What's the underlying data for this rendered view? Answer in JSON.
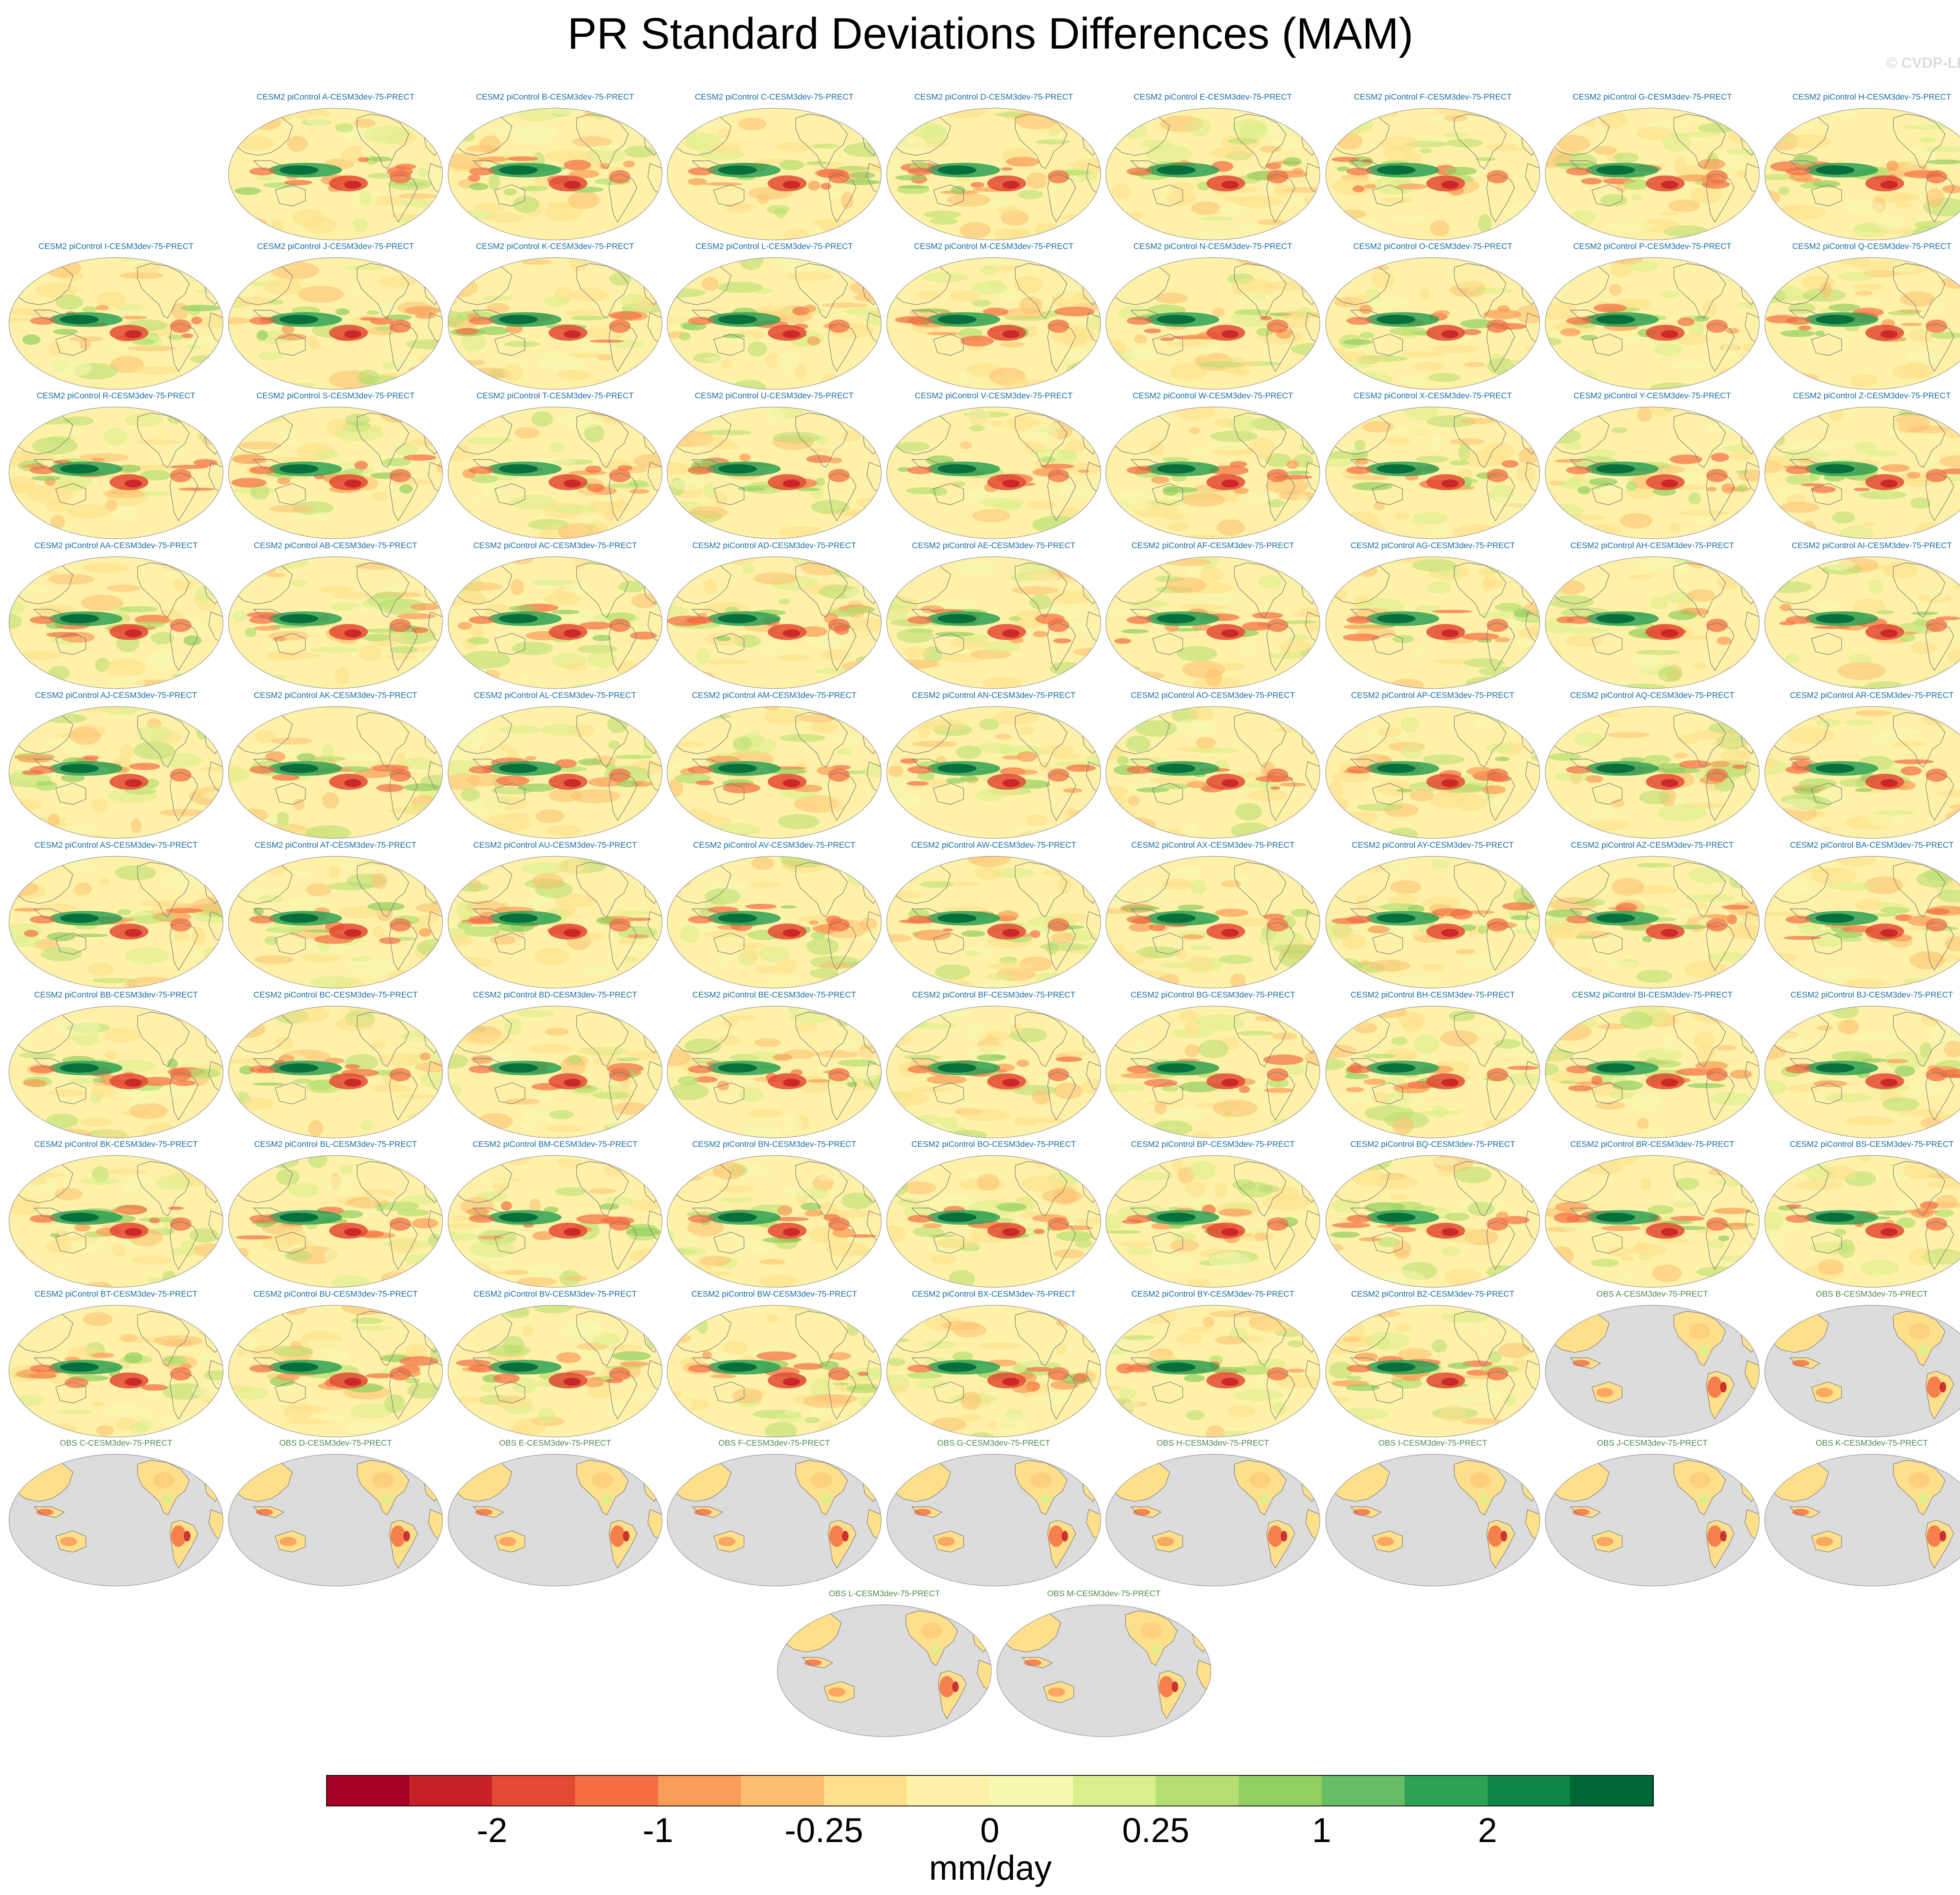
{
  "figure": {
    "title": "PR Standard Deviations Differences (MAM)",
    "watermark": "© CVDP-LE"
  },
  "colors": {
    "model_label": "#1a6ea0",
    "obs_label": "#4f8a4f",
    "ocean_obs": "#dcdcdc",
    "coast": "#7a7a7a",
    "background": "#ffffff"
  },
  "panels": [
    {
      "label": "CESM2 piControl A-CESM3dev-75-PRECT",
      "kind": "model"
    },
    {
      "label": "CESM2 piControl B-CESM3dev-75-PRECT",
      "kind": "model"
    },
    {
      "label": "CESM2 piControl C-CESM3dev-75-PRECT",
      "kind": "model"
    },
    {
      "label": "CESM2 piControl D-CESM3dev-75-PRECT",
      "kind": "model"
    },
    {
      "label": "CESM2 piControl E-CESM3dev-75-PRECT",
      "kind": "model"
    },
    {
      "label": "CESM2 piControl F-CESM3dev-75-PRECT",
      "kind": "model"
    },
    {
      "label": "CESM2 piControl G-CESM3dev-75-PRECT",
      "kind": "model"
    },
    {
      "label": "CESM2 piControl H-CESM3dev-75-PRECT",
      "kind": "model"
    },
    {
      "label": "CESM2 piControl I-CESM3dev-75-PRECT",
      "kind": "model"
    },
    {
      "label": "CESM2 piControl J-CESM3dev-75-PRECT",
      "kind": "model"
    },
    {
      "label": "CESM2 piControl K-CESM3dev-75-PRECT",
      "kind": "model"
    },
    {
      "label": "CESM2 piControl L-CESM3dev-75-PRECT",
      "kind": "model"
    },
    {
      "label": "CESM2 piControl M-CESM3dev-75-PRECT",
      "kind": "model"
    },
    {
      "label": "CESM2 piControl N-CESM3dev-75-PRECT",
      "kind": "model"
    },
    {
      "label": "CESM2 piControl O-CESM3dev-75-PRECT",
      "kind": "model"
    },
    {
      "label": "CESM2 piControl P-CESM3dev-75-PRECT",
      "kind": "model"
    },
    {
      "label": "CESM2 piControl Q-CESM3dev-75-PRECT",
      "kind": "model"
    },
    {
      "label": "CESM2 piControl R-CESM3dev-75-PRECT",
      "kind": "model"
    },
    {
      "label": "CESM2 piControl S-CESM3dev-75-PRECT",
      "kind": "model"
    },
    {
      "label": "CESM2 piControl T-CESM3dev-75-PRECT",
      "kind": "model"
    },
    {
      "label": "CESM2 piControl U-CESM3dev-75-PRECT",
      "kind": "model"
    },
    {
      "label": "CESM2 piControl V-CESM3dev-75-PRECT",
      "kind": "model"
    },
    {
      "label": "CESM2 piControl W-CESM3dev-75-PRECT",
      "kind": "model"
    },
    {
      "label": "CESM2 piControl X-CESM3dev-75-PRECT",
      "kind": "model"
    },
    {
      "label": "CESM2 piControl Y-CESM3dev-75-PRECT",
      "kind": "model"
    },
    {
      "label": "CESM2 piControl Z-CESM3dev-75-PRECT",
      "kind": "model"
    },
    {
      "label": "CESM2 piControl AA-CESM3dev-75-PRECT",
      "kind": "model"
    },
    {
      "label": "CESM2 piControl AB-CESM3dev-75-PRECT",
      "kind": "model"
    },
    {
      "label": "CESM2 piControl AC-CESM3dev-75-PRECT",
      "kind": "model"
    },
    {
      "label": "CESM2 piControl AD-CESM3dev-75-PRECT",
      "kind": "model"
    },
    {
      "label": "CESM2 piControl AE-CESM3dev-75-PRECT",
      "kind": "model"
    },
    {
      "label": "CESM2 piControl AF-CESM3dev-75-PRECT",
      "kind": "model"
    },
    {
      "label": "CESM2 piControl AG-CESM3dev-75-PRECT",
      "kind": "model"
    },
    {
      "label": "CESM2 piControl AH-CESM3dev-75-PRECT",
      "kind": "model"
    },
    {
      "label": "CESM2 piControl AI-CESM3dev-75-PRECT",
      "kind": "model"
    },
    {
      "label": "CESM2 piControl AJ-CESM3dev-75-PRECT",
      "kind": "model"
    },
    {
      "label": "CESM2 piControl AK-CESM3dev-75-PRECT",
      "kind": "model"
    },
    {
      "label": "CESM2 piControl AL-CESM3dev-75-PRECT",
      "kind": "model"
    },
    {
      "label": "CESM2 piControl AM-CESM3dev-75-PRECT",
      "kind": "model"
    },
    {
      "label": "CESM2 piControl AN-CESM3dev-75-PRECT",
      "kind": "model"
    },
    {
      "label": "CESM2 piControl AO-CESM3dev-75-PRECT",
      "kind": "model"
    },
    {
      "label": "CESM2 piControl AP-CESM3dev-75-PRECT",
      "kind": "model"
    },
    {
      "label": "CESM2 piControl AQ-CESM3dev-75-PRECT",
      "kind": "model"
    },
    {
      "label": "CESM2 piControl AR-CESM3dev-75-PRECT",
      "kind": "model"
    },
    {
      "label": "CESM2 piControl AS-CESM3dev-75-PRECT",
      "kind": "model"
    },
    {
      "label": "CESM2 piControl AT-CESM3dev-75-PRECT",
      "kind": "model"
    },
    {
      "label": "CESM2 piControl AU-CESM3dev-75-PRECT",
      "kind": "model"
    },
    {
      "label": "CESM2 piControl AV-CESM3dev-75-PRECT",
      "kind": "model"
    },
    {
      "label": "CESM2 piControl AW-CESM3dev-75-PRECT",
      "kind": "model"
    },
    {
      "label": "CESM2 piControl AX-CESM3dev-75-PRECT",
      "kind": "model"
    },
    {
      "label": "CESM2 piControl AY-CESM3dev-75-PRECT",
      "kind": "model"
    },
    {
      "label": "CESM2 piControl AZ-CESM3dev-75-PRECT",
      "kind": "model"
    },
    {
      "label": "CESM2 piControl BA-CESM3dev-75-PRECT",
      "kind": "model"
    },
    {
      "label": "CESM2 piControl BB-CESM3dev-75-PRECT",
      "kind": "model"
    },
    {
      "label": "CESM2 piControl BC-CESM3dev-75-PRECT",
      "kind": "model"
    },
    {
      "label": "CESM2 piControl BD-CESM3dev-75-PRECT",
      "kind": "model"
    },
    {
      "label": "CESM2 piControl BE-CESM3dev-75-PRECT",
      "kind": "model"
    },
    {
      "label": "CESM2 piControl BF-CESM3dev-75-PRECT",
      "kind": "model"
    },
    {
      "label": "CESM2 piControl BG-CESM3dev-75-PRECT",
      "kind": "model"
    },
    {
      "label": "CESM2 piControl BH-CESM3dev-75-PRECT",
      "kind": "model"
    },
    {
      "label": "CESM2 piControl BI-CESM3dev-75-PRECT",
      "kind": "model"
    },
    {
      "label": "CESM2 piControl BJ-CESM3dev-75-PRECT",
      "kind": "model"
    },
    {
      "label": "CESM2 piControl BK-CESM3dev-75-PRECT",
      "kind": "model"
    },
    {
      "label": "CESM2 piControl BL-CESM3dev-75-PRECT",
      "kind": "model"
    },
    {
      "label": "CESM2 piControl BM-CESM3dev-75-PRECT",
      "kind": "model"
    },
    {
      "label": "CESM2 piControl BN-CESM3dev-75-PRECT",
      "kind": "model"
    },
    {
      "label": "CESM2 piControl BO-CESM3dev-75-PRECT",
      "kind": "model"
    },
    {
      "label": "CESM2 piControl BP-CESM3dev-75-PRECT",
      "kind": "model"
    },
    {
      "label": "CESM2 piControl BQ-CESM3dev-75-PRECT",
      "kind": "model"
    },
    {
      "label": "CESM2 piControl BR-CESM3dev-75-PRECT",
      "kind": "model"
    },
    {
      "label": "CESM2 piControl BS-CESM3dev-75-PRECT",
      "kind": "model"
    },
    {
      "label": "CESM2 piControl BT-CESM3dev-75-PRECT",
      "kind": "model"
    },
    {
      "label": "CESM2 piControl BU-CESM3dev-75-PRECT",
      "kind": "model"
    },
    {
      "label": "CESM2 piControl BV-CESM3dev-75-PRECT",
      "kind": "model"
    },
    {
      "label": "CESM2 piControl BW-CESM3dev-75-PRECT",
      "kind": "model"
    },
    {
      "label": "CESM2 piControl BX-CESM3dev-75-PRECT",
      "kind": "model"
    },
    {
      "label": "CESM2 piControl BY-CESM3dev-75-PRECT",
      "kind": "model"
    },
    {
      "label": "CESM2 piControl BZ-CESM3dev-75-PRECT",
      "kind": "model"
    },
    {
      "label": "OBS A-CESM3dev-75-PRECT",
      "kind": "obs"
    },
    {
      "label": "OBS B-CESM3dev-75-PRECT",
      "kind": "obs"
    },
    {
      "label": "OBS C-CESM3dev-75-PRECT",
      "kind": "obs"
    },
    {
      "label": "OBS D-CESM3dev-75-PRECT",
      "kind": "obs"
    },
    {
      "label": "OBS E-CESM3dev-75-PRECT",
      "kind": "obs"
    },
    {
      "label": "OBS F-CESM3dev-75-PRECT",
      "kind": "obs"
    },
    {
      "label": "OBS G-CESM3dev-75-PRECT",
      "kind": "obs"
    },
    {
      "label": "OBS H-CESM3dev-75-PRECT",
      "kind": "obs"
    },
    {
      "label": "OBS I-CESM3dev-75-PRECT",
      "kind": "obs"
    },
    {
      "label": "OBS J-CESM3dev-75-PRECT",
      "kind": "obs"
    },
    {
      "label": "OBS K-CESM3dev-75-PRECT",
      "kind": "obs"
    },
    {
      "label": "OBS L-CESM3dev-75-PRECT",
      "kind": "obs"
    },
    {
      "label": "OBS M-CESM3dev-75-PRECT",
      "kind": "obs"
    }
  ],
  "colorbar": {
    "colors": [
      "#a50026",
      "#c62127",
      "#e34a33",
      "#f46d43",
      "#f99d59",
      "#fdbf6f",
      "#fee08b",
      "#fff2a8",
      "#f5f8b0",
      "#d9ef8b",
      "#b5df70",
      "#91cf60",
      "#66bd63",
      "#2ea153",
      "#0f8446",
      "#006837"
    ],
    "tick_labels": [
      "-2",
      "-1",
      "-0.25",
      "0",
      "0.25",
      "1",
      "2"
    ],
    "tick_boundaries": [
      2,
      4,
      6,
      8,
      10,
      12,
      14
    ],
    "units": "mm/day"
  }
}
